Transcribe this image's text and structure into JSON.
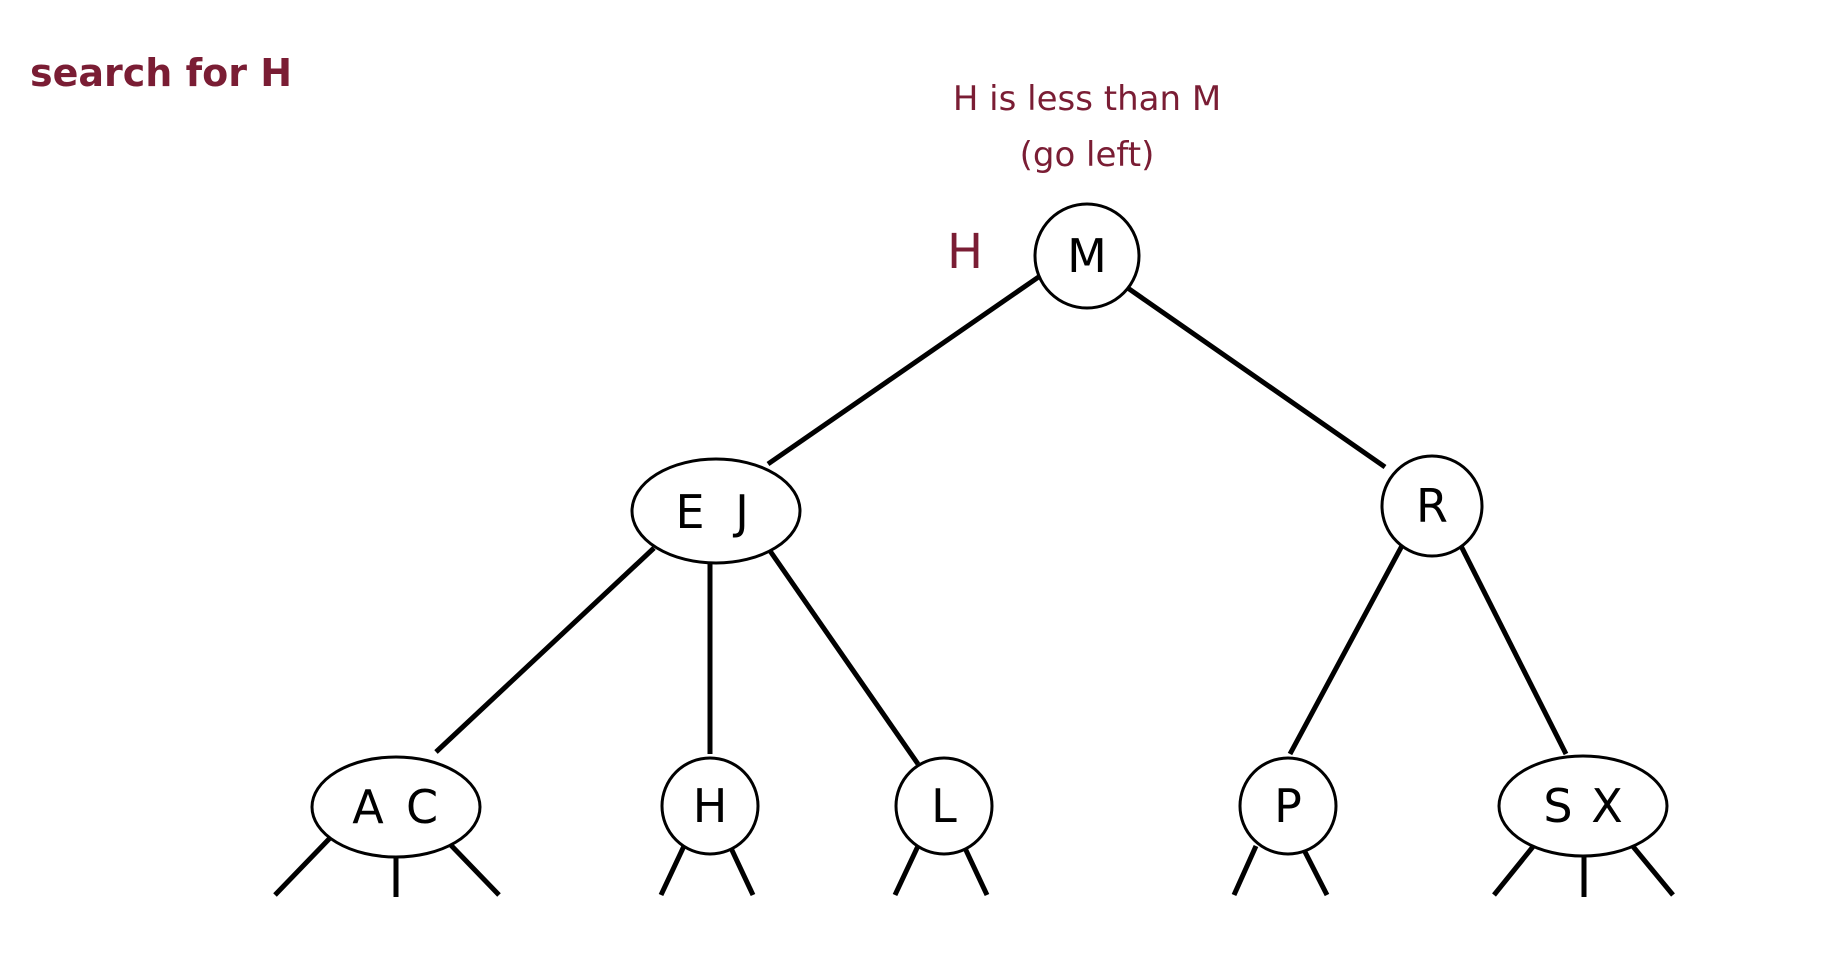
{
  "header": {
    "title": "search for H"
  },
  "annotation": {
    "line1": "H is less than M",
    "line2": "(go left)"
  },
  "query_key": "H",
  "colors": {
    "accent_text": "#7a1d34",
    "highlight_fill": "#c58e9c",
    "stroke": "#000000",
    "node_fill": "#ffffff"
  },
  "tree": {
    "root": {
      "keys": [
        "M"
      ],
      "highlighted": true
    },
    "level1": [
      {
        "keys": [
          "E",
          "J"
        ]
      },
      {
        "keys": [
          "R"
        ]
      }
    ],
    "level2": [
      {
        "keys": [
          "A",
          "C"
        ]
      },
      {
        "keys": [
          "H"
        ]
      },
      {
        "keys": [
          "L"
        ]
      },
      {
        "keys": [
          "P"
        ]
      },
      {
        "keys": [
          "S",
          "X"
        ]
      }
    ]
  }
}
